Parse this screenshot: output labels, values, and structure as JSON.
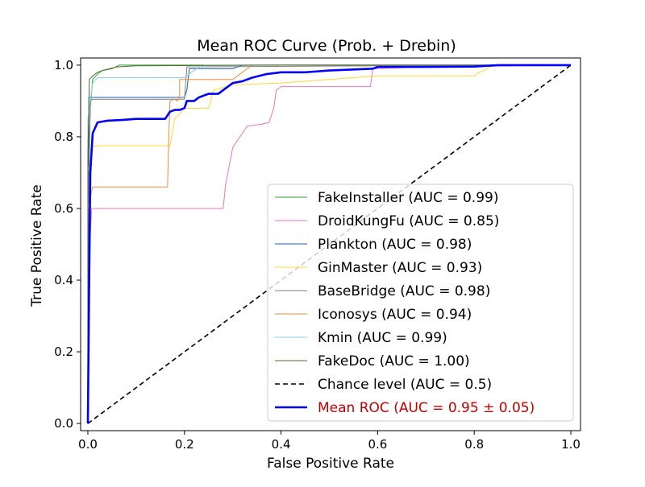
{
  "chart_data": {
    "type": "line",
    "title": "Mean ROC Curve (Prob. + Drebin)",
    "xlabel": "False Positive Rate",
    "ylabel": "True Positive Rate",
    "xlim": [
      -0.015,
      1.02
    ],
    "ylim": [
      -0.02,
      1.02
    ],
    "x_ticks": [
      0.0,
      0.2,
      0.4,
      0.6,
      0.8,
      1.0
    ],
    "x_tick_labels": [
      "0.0",
      "0.2",
      "0.4",
      "0.6",
      "0.8",
      "1.0"
    ],
    "y_ticks": [
      0.0,
      0.2,
      0.4,
      0.6,
      0.8,
      1.0
    ],
    "y_tick_labels": [
      "0.0",
      "0.2",
      "0.4",
      "0.6",
      "0.8",
      "1.0"
    ],
    "grid": false,
    "legend_position": "lower-right",
    "series": [
      {
        "name": "FakeInstaller",
        "label": "FakeInstaller (AUC = 0.99)",
        "color": "#2ca02c",
        "style": "solid",
        "width": 1,
        "points": [
          [
            0,
            0
          ],
          [
            0,
            0.6
          ],
          [
            0.005,
            0.88
          ],
          [
            0.01,
            0.96
          ],
          [
            0.02,
            0.975
          ],
          [
            0.03,
            0.985
          ],
          [
            0.05,
            0.99
          ],
          [
            0.065,
            1.0
          ],
          [
            1.0,
            1.0
          ]
        ]
      },
      {
        "name": "DroidKungFu",
        "label": "DroidKungFu (AUC = 0.85)",
        "color": "#e377c2",
        "style": "solid",
        "width": 1,
        "points": [
          [
            0,
            0
          ],
          [
            0.002,
            0.45
          ],
          [
            0.008,
            0.6
          ],
          [
            0.1,
            0.6
          ],
          [
            0.28,
            0.6
          ],
          [
            0.282,
            0.625
          ],
          [
            0.285,
            0.665
          ],
          [
            0.29,
            0.7
          ],
          [
            0.3,
            0.77
          ],
          [
            0.31,
            0.79
          ],
          [
            0.33,
            0.83
          ],
          [
            0.36,
            0.835
          ],
          [
            0.375,
            0.84
          ],
          [
            0.385,
            0.88
          ],
          [
            0.39,
            0.93
          ],
          [
            0.4,
            0.94
          ],
          [
            0.585,
            0.94
          ],
          [
            0.59,
            0.99
          ],
          [
            0.7,
            0.995
          ],
          [
            1.0,
            1.0
          ]
        ]
      },
      {
        "name": "Plankton",
        "label": "Plankton (AUC = 0.98)",
        "color": "#1f5fa8",
        "style": "solid",
        "width": 1,
        "points": [
          [
            0,
            0
          ],
          [
            0.002,
            0.91
          ],
          [
            0.15,
            0.91
          ],
          [
            0.2,
            0.91
          ],
          [
            0.205,
            0.93
          ],
          [
            0.21,
            0.99
          ],
          [
            0.3,
            0.99
          ],
          [
            0.32,
            1.0
          ],
          [
            1.0,
            1.0
          ]
        ]
      },
      {
        "name": "GinMaster",
        "label": "GinMaster (AUC = 0.93)",
        "color": "#ffd43b",
        "style": "solid",
        "width": 1,
        "points": [
          [
            0,
            0
          ],
          [
            0,
            0.7
          ],
          [
            0.01,
            0.775
          ],
          [
            0.17,
            0.775
          ],
          [
            0.18,
            0.85
          ],
          [
            0.2,
            0.88
          ],
          [
            0.25,
            0.88
          ],
          [
            0.26,
            0.93
          ],
          [
            0.3,
            0.945
          ],
          [
            0.4,
            0.95
          ],
          [
            0.6,
            0.97
          ],
          [
            0.8,
            0.97
          ],
          [
            0.81,
            0.98
          ],
          [
            0.82,
            0.985
          ],
          [
            0.84,
            1.0
          ],
          [
            1.0,
            1.0
          ]
        ]
      },
      {
        "name": "BaseBridge",
        "label": "BaseBridge (AUC = 0.98)",
        "color": "#7f7f7f",
        "style": "solid",
        "width": 1,
        "points": [
          [
            0,
            0
          ],
          [
            0,
            0.55
          ],
          [
            0.005,
            0.9
          ],
          [
            0.01,
            0.905
          ],
          [
            0.165,
            0.905
          ],
          [
            0.2,
            0.905
          ],
          [
            0.205,
            0.995
          ],
          [
            0.6,
            0.998
          ],
          [
            1.0,
            1.0
          ]
        ]
      },
      {
        "name": "Iconosys",
        "label": "Iconosys (AUC = 0.94)",
        "color": "#f08c3c",
        "style": "solid",
        "width": 1,
        "points": [
          [
            0,
            0
          ],
          [
            0,
            0.6
          ],
          [
            0.01,
            0.66
          ],
          [
            0.165,
            0.66
          ],
          [
            0.167,
            0.775
          ],
          [
            0.17,
            0.9
          ],
          [
            0.18,
            0.905
          ],
          [
            0.185,
            0.9
          ],
          [
            0.19,
            0.91
          ],
          [
            0.19,
            0.96
          ],
          [
            0.3,
            0.96
          ],
          [
            0.33,
            0.99
          ],
          [
            0.34,
            1.0
          ],
          [
            1.0,
            1.0
          ]
        ]
      },
      {
        "name": "Kmin",
        "label": "Kmin (AUC = 0.99)",
        "color": "#8fcbea",
        "style": "solid",
        "width": 1,
        "points": [
          [
            0,
            0
          ],
          [
            0,
            0.85
          ],
          [
            0.01,
            0.95
          ],
          [
            0.02,
            0.965
          ],
          [
            0.2,
            0.965
          ],
          [
            0.22,
            0.985
          ],
          [
            0.24,
            1.0
          ],
          [
            1.0,
            1.0
          ]
        ]
      },
      {
        "name": "FakeDoc",
        "label": "FakeDoc (AUC = 1.00)",
        "color": "#556b2f",
        "style": "solid",
        "width": 1,
        "points": [
          [
            0,
            0
          ],
          [
            0,
            0.75
          ],
          [
            0.003,
            0.96
          ],
          [
            0.01,
            0.97
          ],
          [
            0.02,
            0.98
          ],
          [
            0.03,
            0.985
          ],
          [
            0.045,
            0.99
          ],
          [
            0.06,
            0.995
          ],
          [
            0.1,
            0.998
          ],
          [
            0.4,
            1.0
          ],
          [
            1.0,
            1.0
          ]
        ]
      },
      {
        "name": "Chance level",
        "label": "Chance level (AUC = 0.5)",
        "color": "#000000",
        "style": "dashed",
        "width": 1.6,
        "points": [
          [
            0,
            0
          ],
          [
            1,
            1
          ]
        ]
      },
      {
        "name": "Mean ROC",
        "label": "Mean ROC (AUC = 0.95 ± 0.05)",
        "label_color": "#c00000",
        "color": "#0000ff",
        "style": "solid",
        "width": 2.6,
        "points": [
          [
            0,
            0
          ],
          [
            0.002,
            0.3
          ],
          [
            0.005,
            0.7
          ],
          [
            0.01,
            0.81
          ],
          [
            0.02,
            0.84
          ],
          [
            0.04,
            0.845
          ],
          [
            0.07,
            0.847
          ],
          [
            0.1,
            0.85
          ],
          [
            0.16,
            0.85
          ],
          [
            0.165,
            0.86
          ],
          [
            0.17,
            0.87
          ],
          [
            0.18,
            0.875
          ],
          [
            0.19,
            0.875
          ],
          [
            0.2,
            0.88
          ],
          [
            0.205,
            0.9
          ],
          [
            0.22,
            0.9
          ],
          [
            0.23,
            0.91
          ],
          [
            0.25,
            0.92
          ],
          [
            0.27,
            0.92
          ],
          [
            0.28,
            0.93
          ],
          [
            0.3,
            0.95
          ],
          [
            0.32,
            0.955
          ],
          [
            0.34,
            0.965
          ],
          [
            0.37,
            0.975
          ],
          [
            0.4,
            0.98
          ],
          [
            0.45,
            0.98
          ],
          [
            0.5,
            0.985
          ],
          [
            0.59,
            0.99
          ],
          [
            0.6,
            0.995
          ],
          [
            0.7,
            0.995
          ],
          [
            0.8,
            0.996
          ],
          [
            0.85,
            1.0
          ],
          [
            1.0,
            1.0
          ]
        ]
      }
    ]
  }
}
